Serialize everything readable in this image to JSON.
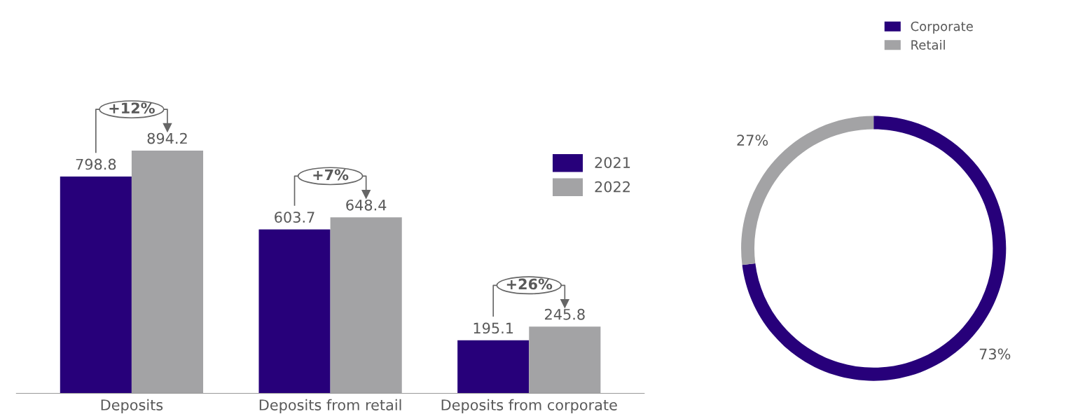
{
  "chart_data": [
    {
      "type": "bar",
      "categories": [
        "Deposits",
        "Deposits from retail",
        "Deposits from corporate"
      ],
      "series": [
        {
          "name": "2021",
          "color": "#27007a",
          "values": [
            798.8,
            603.7,
            195.1
          ]
        },
        {
          "name": "2022",
          "color": "#a3a3a5",
          "values": [
            894.2,
            648.4,
            245.8
          ]
        }
      ],
      "data_labels": true,
      "legend": "right",
      "annotations": [
        {
          "text": "+12%",
          "x": "Deposits",
          "y": 894.2
        },
        {
          "text": "+7%",
          "x": "Deposits from retail",
          "y": 648.4
        },
        {
          "text": "+26%",
          "x": "Deposits from corporate",
          "y": 245.8
        }
      ]
    },
    {
      "type": "donut",
      "categories": [
        "Corporate",
        "Retail"
      ],
      "values": [
        73,
        27
      ],
      "colors": [
        "#27007a",
        "#a3a3a5"
      ],
      "value_labels": [
        "73%",
        "27%"
      ],
      "legend": "top right"
    }
  ]
}
